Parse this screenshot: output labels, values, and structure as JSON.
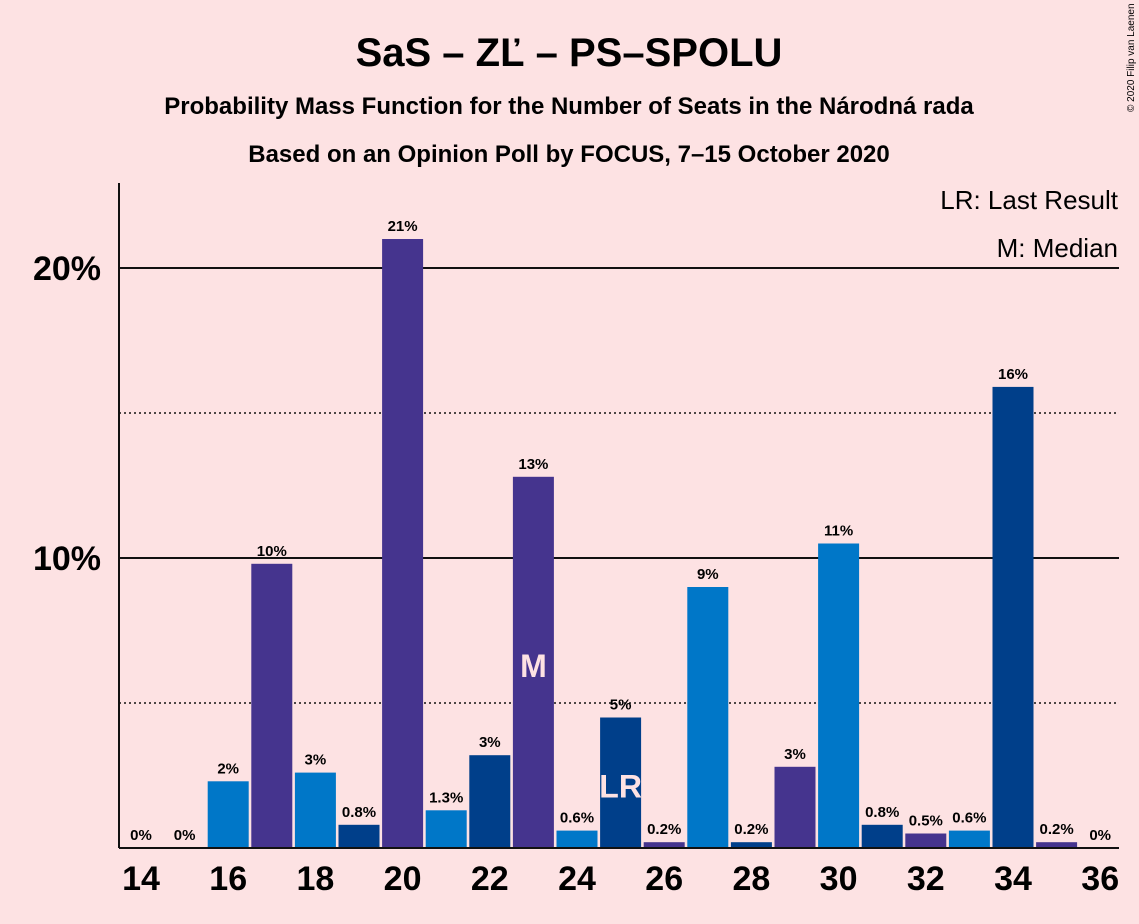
{
  "chart_data": {
    "type": "bar",
    "title": "SaS – ZĽ – PS–SPOLU",
    "subtitle": "Probability Mass Function for the Number of Seats in the Národná rada",
    "subtitle2": "Based on an Opinion Poll by FOCUS, 7–15 October 2020",
    "copyright": "© 2020 Filip van Laenen",
    "legend": [
      "LR: Last Result",
      "M: Median"
    ],
    "legend_placement": "top-right",
    "categories": [
      14,
      15,
      16,
      17,
      18,
      19,
      20,
      21,
      22,
      23,
      24,
      25,
      26,
      27,
      28,
      29,
      30,
      31,
      32,
      33,
      34,
      35,
      36
    ],
    "values": [
      0,
      0,
      2.3,
      9.8,
      2.6,
      0.8,
      21.0,
      1.3,
      3.2,
      12.8,
      0.6,
      4.5,
      0.2,
      9.0,
      0.2,
      2.8,
      10.5,
      0.8,
      0.5,
      0.6,
      15.9,
      0.2,
      0
    ],
    "data_labels": [
      "0%",
      "0%",
      "2%",
      "10%",
      "3%",
      "0.8%",
      "21%",
      "1.3%",
      "3%",
      "13%",
      "0.6%",
      "5%",
      "0.2%",
      "9%",
      "0.2%",
      "3%",
      "11%",
      "0.8%",
      "0.5%",
      "0.6%",
      "16%",
      "0.2%",
      "0%"
    ],
    "bar_colors": [
      "#003F8A",
      "#45348E",
      "#0077C8",
      "#45348E",
      "#0077C8",
      "#003F8A",
      "#45348E",
      "#0077C8",
      "#003F8A",
      "#45348E",
      "#0077C8",
      "#003F8A",
      "#45348E",
      "#0077C8",
      "#003F8A",
      "#45348E",
      "#0077C8",
      "#003F8A",
      "#45348E",
      "#0077C8",
      "#003F8A",
      "#45348E",
      "#0077C8"
    ],
    "x_tick_labels": [
      "14",
      "16",
      "18",
      "20",
      "22",
      "24",
      "26",
      "28",
      "30",
      "32",
      "34",
      "36"
    ],
    "y_tick_labels": [
      "10%",
      "20%"
    ],
    "ylim": [
      0,
      23
    ],
    "median_seat": 23,
    "median_mark": "M",
    "last_result_seat": 25,
    "last_result_mark": "LR",
    "grid": "solid at 10% and 20%, dotted at 5% and 15%"
  }
}
